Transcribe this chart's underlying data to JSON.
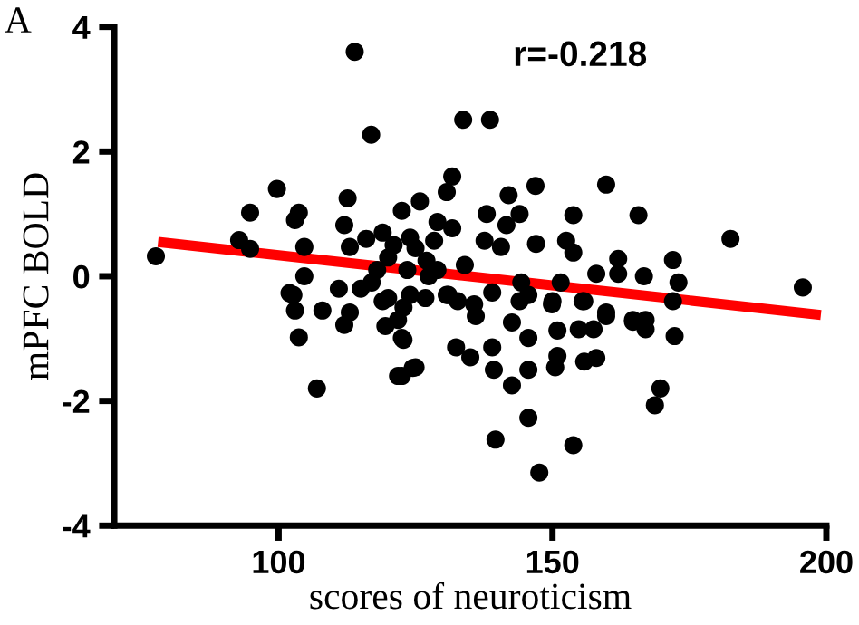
{
  "chart_data": {
    "type": "scatter",
    "title": "A",
    "xlabel": "scores of neuroticism",
    "ylabel": "mPFC BOLD",
    "annotations": [
      "r=-0.218"
    ],
    "xlim": [
      70,
      200
    ],
    "ylim": [
      -4,
      4
    ],
    "xticks": [
      100,
      150,
      200
    ],
    "yticks": [
      -4,
      -2,
      0,
      2,
      4
    ],
    "grid": false,
    "legend": false,
    "marker": "circle",
    "series": [
      {
        "color": "#000000",
        "x": [
          77.6,
          113.9,
          116.9,
          99.7,
          94.8,
          92.8,
          94.8,
          103,
          103.7,
          104.7,
          104.7,
          102,
          103,
          108,
          111,
          112.6,
          112,
          113,
          115,
          102.7,
          103.7,
          107,
          113,
          112,
          119.5,
          122.8,
          121.8,
          124.5,
          119,
          133.7,
          138.6,
          131.7,
          130.7,
          146.9,
          159.8,
          142,
          153.8,
          165.7,
          182.5,
          195.7,
          138,
          144,
          125.8,
          122.5,
          129,
          131.7,
          141.6,
          137.6,
          140.6,
          147,
          152.5,
          153.8,
          128.4,
          124,
          134,
          123.5,
          127.4,
          130.7,
          139,
          144.3,
          151.5,
          158,
          162,
          162,
          166.7,
          172,
          173,
          172,
          155.8,
          159.8,
          149.9,
          135.7,
          144,
          164.7,
          167,
          124,
          121.8,
          132.7,
          136,
          132.4,
          135,
          139,
          142.6,
          145.6,
          139.3,
          142.6,
          145.6,
          150.5,
          150.9,
          150.9,
          154.8,
          155.8,
          158,
          159.8,
          157.5,
          164.7,
          167,
          172.3,
          169.7,
          168.7,
          145.6,
          139.6,
          153.8,
          147.6,
          125,
          122.5,
          122.8,
          122.5,
          126.8,
          131,
          145.6,
          150,
          155.5,
          120,
          118,
          117,
          121,
          125,
          119,
          116,
          127,
          129,
          120
        ],
        "values": [
          0.32,
          3.6,
          2.27,
          1.4,
          1.02,
          0.58,
          0.44,
          0.9,
          1.02,
          0.47,
          0,
          -0.27,
          -0.55,
          -0.55,
          -0.2,
          1.25,
          0.82,
          0.47,
          -0.2,
          -0.3,
          -0.98,
          -1.8,
          -0.58,
          -0.78,
          -0.8,
          -1.02,
          -1.6,
          -1.47,
          -0.4,
          2.51,
          2.51,
          1.6,
          1.35,
          1.45,
          1.47,
          1.3,
          0.98,
          0.98,
          0.6,
          -0.18,
          1,
          1,
          1.2,
          1.05,
          0.87,
          0.77,
          0.82,
          0.57,
          0.47,
          0.52,
          0.57,
          0.38,
          0.57,
          0.62,
          0.18,
          0.1,
          0,
          -0.3,
          -0.26,
          -0.1,
          -0.1,
          0.04,
          0.28,
          0.04,
          0,
          0.26,
          -0.1,
          -0.4,
          -0.4,
          -0.58,
          -0.45,
          -0.45,
          -0.4,
          -0.7,
          -0.7,
          -0.3,
          -0.7,
          -0.4,
          -0.64,
          -1.14,
          -1.3,
          -1.14,
          -0.74,
          -0.99,
          -1.5,
          -1.75,
          -1.5,
          -1.46,
          -1.28,
          -0.87,
          -0.85,
          -1.37,
          -1.31,
          -0.64,
          -0.85,
          -0.73,
          -0.85,
          -0.96,
          -1.8,
          -2.07,
          -2.27,
          -2.62,
          -2.71,
          -3.15,
          -1.46,
          -1.6,
          -0.5,
          -0.99,
          -0.35,
          -0.3,
          -0.3,
          -0.4,
          -0.4,
          0.3,
          0.1,
          -0.1,
          0.5,
          0.45,
          0.7,
          0.6,
          0.25,
          0.1,
          -0.35
        ]
      },
      {
        "type": "line",
        "color": "#ff0000",
        "x": [
          78,
          199
        ],
        "values": [
          0.55,
          -0.62
        ],
        "marker": "none",
        "line_style": "solid"
      }
    ]
  }
}
